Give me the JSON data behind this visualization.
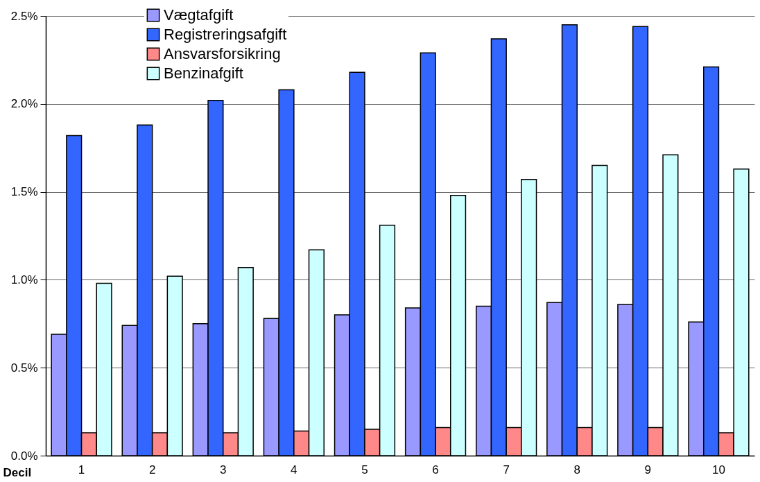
{
  "chart_data": {
    "type": "bar",
    "xlabel": "Decil",
    "categories": [
      "1",
      "2",
      "3",
      "4",
      "5",
      "6",
      "7",
      "8",
      "9",
      "10"
    ],
    "series": [
      {
        "name": "Vægtafgift",
        "color": "#9999ff",
        "values": [
          0.69,
          0.74,
          0.75,
          0.78,
          0.8,
          0.84,
          0.85,
          0.87,
          0.86,
          0.76
        ]
      },
      {
        "name": "Registreringsafgift",
        "color": "#3366ff",
        "values": [
          1.82,
          1.88,
          2.02,
          2.08,
          2.18,
          2.29,
          2.37,
          2.45,
          2.44,
          2.21
        ]
      },
      {
        "name": "Ansvarsforsikring",
        "color": "#ff8888",
        "values": [
          0.13,
          0.13,
          0.13,
          0.14,
          0.15,
          0.16,
          0.16,
          0.16,
          0.16,
          0.13
        ]
      },
      {
        "name": "Benzinafgift",
        "color": "#ccffff",
        "values": [
          0.98,
          1.02,
          1.07,
          1.17,
          1.31,
          1.48,
          1.57,
          1.65,
          1.71,
          1.63
        ]
      }
    ],
    "ylim": [
      0,
      2.5
    ],
    "yticks": [
      {
        "value": 0,
        "label": "0.0%"
      },
      {
        "value": 0.5,
        "label": "0.5%"
      },
      {
        "value": 1,
        "label": "1.0%"
      },
      {
        "value": 1.5,
        "label": "1.5%"
      },
      {
        "value": 2,
        "label": "2.0%"
      },
      {
        "value": 2.5,
        "label": "2.5%"
      }
    ],
    "grid": "y",
    "legend": "top left"
  }
}
